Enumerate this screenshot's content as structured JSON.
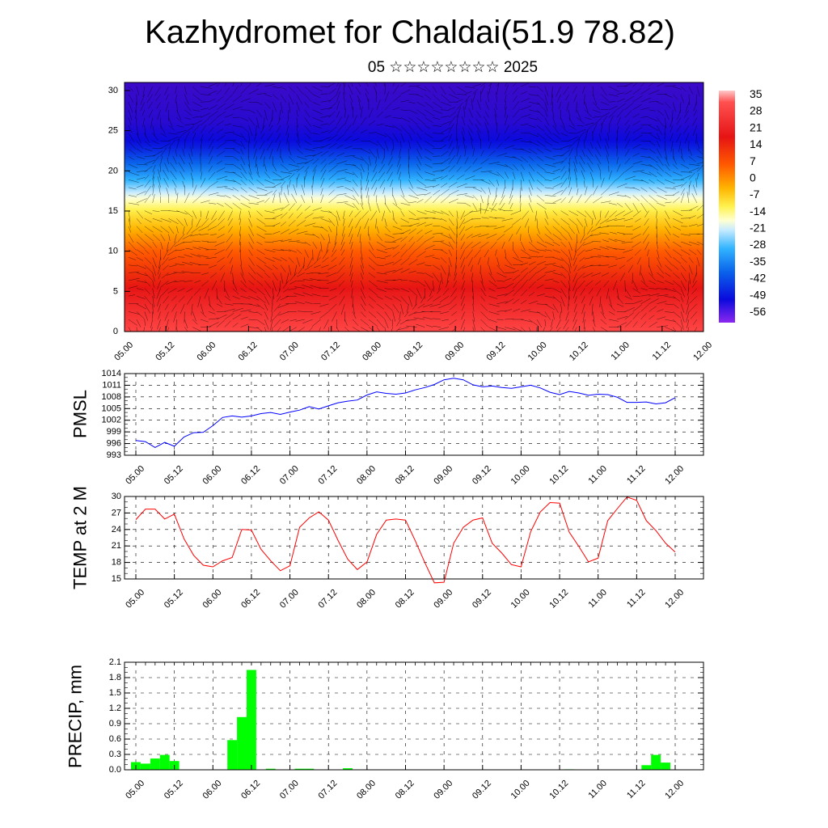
{
  "title": "Kazhydromet for Chaldai(51.9 78.82)",
  "subtitle": "05 ☆☆☆☆☆☆☆☆ 2025",
  "chart_data": [
    {
      "type": "heatmap",
      "description_axes": "time-height cross-section with wind vectors",
      "xlabel": "",
      "ylabel": "",
      "x_tick_labels": [
        "05.00",
        "05.12",
        "06.00",
        "06.12",
        "07.00",
        "07.12",
        "08.00",
        "08.12",
        "09.00",
        "09.12",
        "10.00",
        "10.12",
        "11.00",
        "11.12",
        "12.00"
      ],
      "y_ticks": [
        0,
        5,
        10,
        15,
        20,
        25,
        30
      ],
      "ylim": [
        0,
        31
      ],
      "colorbar_levels": [
        35,
        28,
        21,
        14,
        7,
        0,
        -7,
        -14,
        -21,
        -28,
        -35,
        -42,
        -49,
        -56
      ],
      "temperature_profile_by_level": [
        {
          "level": 0,
          "value": 30
        },
        {
          "level": 5,
          "value": 22
        },
        {
          "level": 10,
          "value": 12
        },
        {
          "level": 15,
          "value": -4
        },
        {
          "level": 17,
          "value": -14
        },
        {
          "level": 20,
          "value": -30
        },
        {
          "level": 23,
          "value": -45
        },
        {
          "level": 26,
          "value": -55
        },
        {
          "level": 31,
          "value": -60
        }
      ],
      "vectors": true
    },
    {
      "type": "line",
      "ylabel": "PMSL",
      "ylim": [
        993,
        1014
      ],
      "y_ticks": [
        993,
        996,
        999,
        1002,
        1005,
        1008,
        1011,
        1014
      ],
      "x_tick_labels": [
        "05.00",
        "05.12",
        "06.00",
        "06.12",
        "07.00",
        "07.12",
        "08.00",
        "08.12",
        "09.00",
        "09.12",
        "10.00",
        "10.12",
        "11.00",
        "11.12",
        "12.00"
      ],
      "series": [
        {
          "color": "#0000ff",
          "x": [
            0,
            3,
            6,
            9,
            12,
            15,
            18,
            21,
            24,
            27,
            30,
            33,
            36,
            39,
            42,
            45,
            48,
            51,
            54,
            57,
            60,
            63,
            66,
            69,
            72,
            75,
            78,
            81,
            84,
            87,
            90,
            93,
            96,
            99,
            102,
            105,
            108,
            111,
            114,
            117,
            120,
            123,
            126,
            129,
            132,
            135,
            138,
            141,
            144,
            147,
            150,
            153,
            156,
            159,
            162,
            165,
            168
          ],
          "values": [
            996.8,
            996.5,
            995.0,
            996.3,
            995.3,
            997.7,
            998.8,
            998.9,
            1000.6,
            1002.7,
            1003.1,
            1002.8,
            1003.1,
            1003.7,
            1004.0,
            1003.5,
            1004.1,
            1004.6,
            1005.5,
            1004.9,
            1005.7,
            1006.5,
            1006.9,
            1007.2,
            1008.5,
            1009.3,
            1008.9,
            1008.7,
            1009.0,
            1009.8,
            1010.4,
            1011.2,
            1012.4,
            1012.8,
            1012.4,
            1011.1,
            1010.6,
            1010.8,
            1010.4,
            1010.2,
            1010.6,
            1011.0,
            1010.3,
            1009.2,
            1008.6,
            1009.4,
            1009.0,
            1008.4,
            1008.7,
            1008.6,
            1007.9,
            1006.6,
            1006.6,
            1006.7,
            1006.2,
            1006.5,
            1007.8
          ]
        }
      ]
    },
    {
      "type": "line",
      "ylabel": "TEMP at 2 M",
      "ylim": [
        15,
        30
      ],
      "y_ticks": [
        15,
        18,
        21,
        24,
        27,
        30
      ],
      "x_tick_labels": [
        "05.00",
        "05.12",
        "06.00",
        "06.12",
        "07.00",
        "07.12",
        "08.00",
        "08.12",
        "09.00",
        "09.12",
        "10.00",
        "10.12",
        "11.00",
        "11.12",
        "12.00"
      ],
      "series": [
        {
          "color": "#ff0000",
          "x": [
            0,
            3,
            6,
            9,
            12,
            15,
            18,
            21,
            24,
            27,
            30,
            33,
            36,
            39,
            42,
            45,
            48,
            51,
            54,
            57,
            60,
            63,
            66,
            69,
            72,
            75,
            78,
            81,
            84,
            87,
            90,
            93,
            96,
            99,
            102,
            105,
            108,
            111,
            114,
            117,
            120,
            123,
            126,
            129,
            132,
            135,
            138,
            141,
            144,
            147,
            150,
            153,
            156,
            159,
            162,
            165,
            168
          ],
          "values": [
            25.8,
            27.7,
            27.7,
            25.9,
            26.8,
            22.3,
            19.3,
            17.5,
            17.2,
            18.3,
            18.9,
            24.0,
            23.9,
            20.4,
            18.3,
            16.5,
            17.4,
            24.4,
            26.1,
            27.2,
            25.7,
            22.0,
            18.6,
            16.7,
            18.1,
            23.1,
            25.7,
            25.9,
            25.7,
            22.0,
            18.0,
            14.3,
            14.4,
            21.5,
            24.4,
            25.7,
            26.1,
            21.5,
            19.7,
            17.6,
            17.2,
            23.6,
            27.2,
            28.9,
            28.8,
            23.5,
            20.9,
            18.1,
            18.8,
            25.6,
            27.8,
            29.9,
            29.3,
            25.6,
            23.8,
            21.5,
            19.9
          ]
        }
      ]
    },
    {
      "type": "bar",
      "ylabel": "PRECIP, mm",
      "ylim": [
        0,
        2.1
      ],
      "y_ticks": [
        "0.0",
        "0.3",
        "0.6",
        "0.9",
        "1.2",
        "1.5",
        "1.8",
        "2.1"
      ],
      "x_tick_labels": [
        "05.00",
        "05.12",
        "06.00",
        "06.12",
        "07.00",
        "07.12",
        "08.00",
        "08.12",
        "09.00",
        "09.12",
        "10.00",
        "10.12",
        "11.00",
        "11.12",
        "12.00"
      ],
      "bar_color": "#00ff00",
      "series": [
        {
          "x": [
            0,
            3,
            6,
            9,
            12,
            30,
            33,
            36,
            42,
            51,
            54,
            66,
            135,
            159,
            162,
            165
          ],
          "values": [
            0.15,
            0.12,
            0.22,
            0.29,
            0.17,
            0.58,
            1.03,
            1.95,
            0.02,
            0.02,
            0.02,
            0.03,
            0.01,
            0.09,
            0.29,
            0.14
          ]
        }
      ]
    }
  ]
}
